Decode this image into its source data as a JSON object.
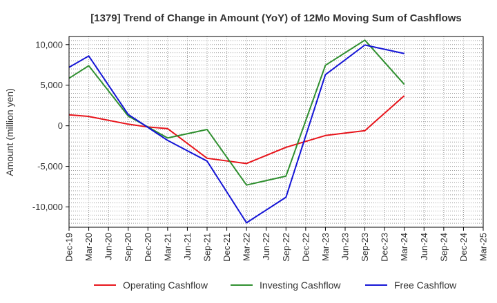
{
  "chart_data": {
    "type": "line",
    "title": "[1379]  Trend of Change in Amount (YoY) of 12Mo Moving Sum of Cashflows",
    "xlabel": "",
    "ylabel": "Amount (million yen)",
    "ylim": [
      -12500,
      11000
    ],
    "yticks": [
      10000,
      5000,
      0,
      -5000,
      -10000
    ],
    "ytick_labels": [
      "10,000",
      "5,000",
      "0",
      "-5,000",
      "-10,000"
    ],
    "categories": [
      "Dec-19",
      "Mar-20",
      "Jun-20",
      "Sep-20",
      "Dec-20",
      "Mar-21",
      "Jun-21",
      "Sep-21",
      "Dec-21",
      "Mar-22",
      "Jun-22",
      "Sep-22",
      "Dec-22",
      "Mar-23",
      "Jun-23",
      "Sep-23",
      "Dec-23",
      "Mar-24",
      "Jun-24",
      "Sep-24",
      "Dec-24",
      "Mar-25"
    ],
    "grid": true,
    "legend_position": "bottom",
    "series": [
      {
        "name": "Operating Cashflow",
        "color": "#e8141b",
        "values": [
          1350,
          1150,
          null,
          200,
          -150,
          -350,
          null,
          -4000,
          null,
          -4650,
          null,
          -2650,
          null,
          -1200,
          null,
          -600,
          null,
          3700,
          null,
          null,
          null,
          null
        ]
      },
      {
        "name": "Investing Cashflow",
        "color": "#2f8f2f",
        "values": [
          5850,
          7400,
          null,
          1200,
          -150,
          -1500,
          null,
          -450,
          null,
          -7300,
          null,
          -6200,
          null,
          7450,
          null,
          10550,
          null,
          5100,
          null,
          null,
          null,
          null
        ]
      },
      {
        "name": "Free Cashflow",
        "color": "#1414d6",
        "values": [
          7200,
          8600,
          null,
          1400,
          -200,
          -1800,
          null,
          -4350,
          null,
          -11950,
          null,
          -8800,
          null,
          6300,
          null,
          9950,
          null,
          8900,
          null,
          null,
          null,
          null
        ]
      }
    ]
  }
}
